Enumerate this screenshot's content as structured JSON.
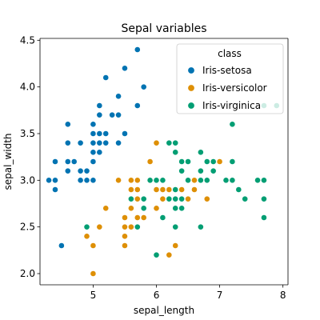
{
  "chart_data": {
    "type": "scatter",
    "title": "Sepal variables",
    "xlabel": "sepal_length",
    "ylabel": "sepal_width",
    "xlim": [
      4.16,
      8.08
    ],
    "ylim": [
      1.88,
      4.52
    ],
    "xticks": [
      5,
      6,
      7,
      8
    ],
    "yticks": [
      2.0,
      2.5,
      3.0,
      3.5,
      4.0,
      4.5
    ],
    "xtick_labels": [
      "5",
      "6",
      "7",
      "8"
    ],
    "ytick_labels": [
      "2.0",
      "2.5",
      "3.0",
      "3.5",
      "4.0",
      "4.5"
    ],
    "legend": {
      "title": "class",
      "placement": "top-right"
    },
    "series": [
      {
        "name": "Iris-setosa",
        "color": "#0173b2",
        "points": [
          [
            5.1,
            3.5
          ],
          [
            4.9,
            3.0
          ],
          [
            4.7,
            3.2
          ],
          [
            4.6,
            3.1
          ],
          [
            5.0,
            3.6
          ],
          [
            5.4,
            3.9
          ],
          [
            4.6,
            3.4
          ],
          [
            5.0,
            3.4
          ],
          [
            4.4,
            2.9
          ],
          [
            4.9,
            3.1
          ],
          [
            5.4,
            3.7
          ],
          [
            4.8,
            3.4
          ],
          [
            4.8,
            3.0
          ],
          [
            4.3,
            3.0
          ],
          [
            5.8,
            4.0
          ],
          [
            5.7,
            4.4
          ],
          [
            5.4,
            3.9
          ],
          [
            5.1,
            3.5
          ],
          [
            5.7,
            3.8
          ],
          [
            5.1,
            3.8
          ],
          [
            5.4,
            3.4
          ],
          [
            5.1,
            3.7
          ],
          [
            4.6,
            3.6
          ],
          [
            5.1,
            3.3
          ],
          [
            4.8,
            3.4
          ],
          [
            5.0,
            3.0
          ],
          [
            5.0,
            3.4
          ],
          [
            5.2,
            3.5
          ],
          [
            5.2,
            3.4
          ],
          [
            4.7,
            3.2
          ],
          [
            4.8,
            3.1
          ],
          [
            5.4,
            3.4
          ],
          [
            5.2,
            4.1
          ],
          [
            5.5,
            4.2
          ],
          [
            4.9,
            3.1
          ],
          [
            5.0,
            3.2
          ],
          [
            5.5,
            3.5
          ],
          [
            4.9,
            3.1
          ],
          [
            4.4,
            3.0
          ],
          [
            5.1,
            3.4
          ],
          [
            5.0,
            3.5
          ],
          [
            4.5,
            2.3
          ],
          [
            4.4,
            3.2
          ],
          [
            5.0,
            3.5
          ],
          [
            5.1,
            3.8
          ],
          [
            4.8,
            3.0
          ],
          [
            5.1,
            3.8
          ],
          [
            4.6,
            3.2
          ],
          [
            5.3,
            3.7
          ],
          [
            5.0,
            3.3
          ]
        ]
      },
      {
        "name": "Iris-versicolor",
        "color": "#de8f05",
        "points": [
          [
            7.0,
            3.2
          ],
          [
            6.4,
            3.2
          ],
          [
            6.9,
            3.1
          ],
          [
            5.5,
            2.3
          ],
          [
            6.5,
            2.8
          ],
          [
            5.7,
            2.8
          ],
          [
            6.3,
            3.3
          ],
          [
            4.9,
            2.4
          ],
          [
            6.6,
            2.9
          ],
          [
            5.2,
            2.7
          ],
          [
            5.0,
            2.0
          ],
          [
            5.9,
            3.0
          ],
          [
            6.0,
            2.2
          ],
          [
            6.1,
            2.9
          ],
          [
            5.6,
            2.9
          ],
          [
            6.7,
            3.1
          ],
          [
            5.6,
            3.0
          ],
          [
            5.8,
            2.7
          ],
          [
            6.2,
            2.2
          ],
          [
            5.6,
            2.5
          ],
          [
            5.9,
            3.2
          ],
          [
            6.1,
            2.8
          ],
          [
            6.3,
            2.5
          ],
          [
            6.1,
            2.8
          ],
          [
            6.4,
            2.9
          ],
          [
            6.6,
            3.0
          ],
          [
            6.8,
            2.8
          ],
          [
            6.7,
            3.0
          ],
          [
            6.0,
            2.9
          ],
          [
            5.7,
            2.6
          ],
          [
            5.5,
            2.4
          ],
          [
            5.5,
            2.4
          ],
          [
            5.8,
            2.7
          ],
          [
            6.0,
            2.7
          ],
          [
            5.4,
            3.0
          ],
          [
            6.0,
            3.4
          ],
          [
            6.7,
            3.1
          ],
          [
            6.3,
            2.3
          ],
          [
            5.6,
            3.0
          ],
          [
            5.5,
            2.5
          ],
          [
            5.5,
            2.6
          ],
          [
            6.1,
            3.0
          ],
          [
            5.8,
            2.6
          ],
          [
            5.0,
            2.3
          ],
          [
            5.6,
            2.7
          ],
          [
            5.7,
            3.0
          ],
          [
            5.7,
            2.9
          ],
          [
            6.2,
            2.9
          ],
          [
            5.1,
            2.5
          ],
          [
            5.7,
            2.8
          ]
        ]
      },
      {
        "name": "Iris-virginica",
        "color": "#029e73",
        "points": [
          [
            6.3,
            3.3
          ],
          [
            5.8,
            2.7
          ],
          [
            7.1,
            3.0
          ],
          [
            6.3,
            2.9
          ],
          [
            6.5,
            3.0
          ],
          [
            7.6,
            3.0
          ],
          [
            4.9,
            2.5
          ],
          [
            7.3,
            2.9
          ],
          [
            6.7,
            2.5
          ],
          [
            7.2,
            3.6
          ],
          [
            6.5,
            3.2
          ],
          [
            6.4,
            2.7
          ],
          [
            6.8,
            3.0
          ],
          [
            5.7,
            2.5
          ],
          [
            5.8,
            2.8
          ],
          [
            6.4,
            3.2
          ],
          [
            6.5,
            3.0
          ],
          [
            7.7,
            3.8
          ],
          [
            7.7,
            2.6
          ],
          [
            6.0,
            2.2
          ],
          [
            6.9,
            3.2
          ],
          [
            5.6,
            2.8
          ],
          [
            7.7,
            2.8
          ],
          [
            6.3,
            2.7
          ],
          [
            6.7,
            3.3
          ],
          [
            7.2,
            3.2
          ],
          [
            6.2,
            2.8
          ],
          [
            6.1,
            3.0
          ],
          [
            6.4,
            2.8
          ],
          [
            7.2,
            3.0
          ],
          [
            7.4,
            2.8
          ],
          [
            7.9,
            3.8
          ],
          [
            6.4,
            2.8
          ],
          [
            6.3,
            2.8
          ],
          [
            6.1,
            2.6
          ],
          [
            7.7,
            3.0
          ],
          [
            6.3,
            3.4
          ],
          [
            6.4,
            3.1
          ],
          [
            6.0,
            3.0
          ],
          [
            6.9,
            3.1
          ],
          [
            6.7,
            3.1
          ],
          [
            6.9,
            3.1
          ],
          [
            5.8,
            2.7
          ],
          [
            6.8,
            3.2
          ],
          [
            6.7,
            3.3
          ],
          [
            6.7,
            3.0
          ],
          [
            6.3,
            2.5
          ],
          [
            6.5,
            3.0
          ],
          [
            6.2,
            3.4
          ],
          [
            5.9,
            3.0
          ]
        ]
      }
    ]
  }
}
